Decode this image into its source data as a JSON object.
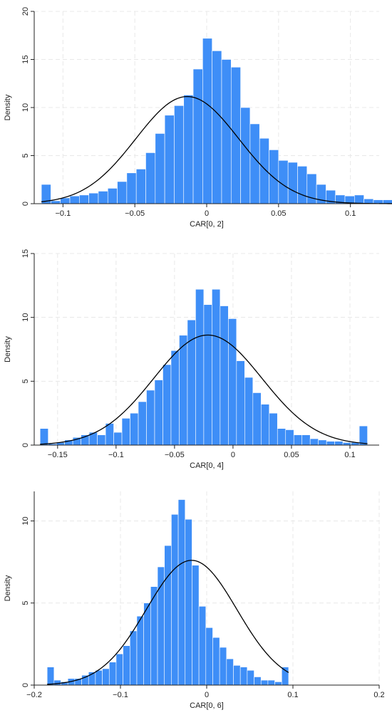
{
  "colors": {
    "bar": "#3e8ef7",
    "bar_edge": "#ffffff",
    "curve": "#000000",
    "axis": "#222222",
    "grid": "#e8e8e8"
  },
  "chart_data": [
    {
      "type": "bar",
      "title": "",
      "xlabel": "CAR[0, 2]",
      "ylabel": "Density",
      "xlim": [
        -0.12,
        0.12
      ],
      "ylim": [
        0,
        20
      ],
      "xticks": [
        -0.1,
        -0.05,
        0,
        0.05,
        0.1
      ],
      "xtick_labels": [
        "−0.1",
        "−0.05",
        "0",
        "0.05",
        "0.1"
      ],
      "yticks": [
        0,
        5,
        10,
        15,
        20
      ],
      "ytick_labels": [
        "0",
        "5",
        "10",
        "15",
        "20"
      ],
      "grid": true,
      "bin_start": -0.115,
      "bin_width": 0.0066,
      "values": [
        2.0,
        0.3,
        0.6,
        0.8,
        0.9,
        1.1,
        1.3,
        1.6,
        2.3,
        3.2,
        3.6,
        5.3,
        7.3,
        9.2,
        10.2,
        11.3,
        14.0,
        17.2,
        15.9,
        15.0,
        14.2,
        10.0,
        8.3,
        6.8,
        5.6,
        4.5,
        4.3,
        3.9,
        3.1,
        2.0,
        1.4,
        0.9,
        0.8,
        0.9,
        0.5,
        0.4,
        0.4,
        0.4,
        0.3,
        0.3,
        0.3,
        0.2,
        0.2,
        0.3,
        0.2,
        1.9
      ],
      "normal_curve": {
        "mean": -0.0135,
        "sd": 0.0358
      }
    },
    {
      "type": "bar",
      "title": "",
      "xlabel": "CAR[0, 4]",
      "ylabel": "Density",
      "xlim": [
        -0.17,
        0.125
      ],
      "ylim": [
        0,
        15
      ],
      "xticks": [
        -0.15,
        -0.1,
        -0.05,
        0,
        0.05,
        0.1
      ],
      "xtick_labels": [
        "−0.15",
        "−0.1",
        "−0.05",
        "0",
        "0.05",
        "0.1"
      ],
      "yticks": [
        0,
        5,
        10,
        15
      ],
      "ytick_labels": [
        "0",
        "5",
        "10",
        "15"
      ],
      "grid": true,
      "bin_start": -0.165,
      "bin_width": 0.007,
      "values": [
        1.3,
        0.1,
        0.2,
        0.4,
        0.6,
        0.8,
        1.0,
        0.8,
        1.7,
        1.0,
        2.1,
        2.5,
        3.4,
        4.3,
        5.1,
        6.3,
        7.4,
        8.6,
        9.8,
        12.2,
        11.0,
        12.2,
        10.9,
        9.9,
        6.6,
        5.3,
        4.1,
        3.2,
        2.5,
        1.3,
        1.2,
        0.8,
        0.8,
        0.5,
        0.4,
        0.3,
        0.3,
        0.2,
        0.2,
        1.5
      ],
      "normal_curve": {
        "mean": -0.0215,
        "sd": 0.0463
      }
    },
    {
      "type": "bar",
      "title": "",
      "xlabel": "CAR[0, 6]",
      "ylabel": "Density",
      "xlim": [
        -0.2,
        0.2
      ],
      "ylim": [
        0,
        11.8
      ],
      "xticks": [
        -0.2,
        -0.1,
        0,
        0.1,
        0.2
      ],
      "xtick_labels": [
        "−0.2",
        "−0.1",
        "0",
        "0.1",
        "0.2"
      ],
      "yticks": [
        0,
        5,
        10
      ],
      "ytick_labels": [
        "0",
        "5",
        "10"
      ],
      "grid": true,
      "bin_start": -0.185,
      "bin_width": 0.008,
      "values": [
        1.1,
        0.3,
        0.2,
        0.4,
        0.4,
        0.6,
        0.8,
        0.9,
        1.0,
        1.4,
        1.9,
        2.4,
        3.3,
        4.2,
        5.0,
        6.0,
        7.2,
        8.5,
        10.4,
        11.3,
        10.1,
        7.3,
        4.8,
        3.5,
        2.9,
        2.3,
        1.6,
        1.2,
        1.1,
        0.9,
        0.5,
        0.3,
        0.3,
        0.2,
        1.1
      ],
      "normal_curve": {
        "mean": -0.0175,
        "sd": 0.0525
      }
    }
  ]
}
